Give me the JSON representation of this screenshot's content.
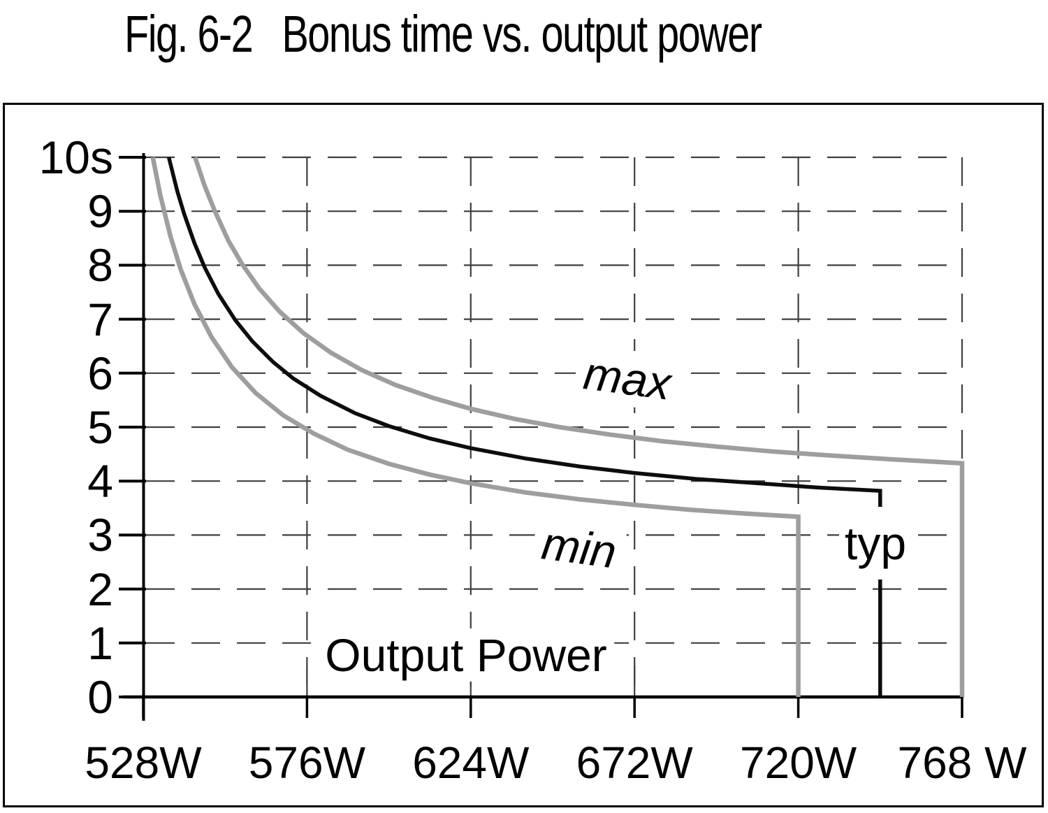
{
  "title": {
    "figure_label": "Fig. 6-2",
    "text": "Bonus time vs. output power"
  },
  "colors": {
    "background": "#ffffff",
    "axis": "#000000",
    "grid": "#3f3f3f",
    "curve_gray": "#9e9e9e",
    "curve_black": "#0d0d0d"
  },
  "chart_data": {
    "type": "line",
    "title": "Bonus time vs. output power",
    "xlabel": "Output Power",
    "x_unit": "W",
    "y_unit": "s",
    "xlim": [
      528,
      768
    ],
    "ylim": [
      0,
      10
    ],
    "grid": "dashed",
    "x_ticks": [
      {
        "value": 528,
        "label": "528W"
      },
      {
        "value": 576,
        "label": "576W"
      },
      {
        "value": 624,
        "label": "624W"
      },
      {
        "value": 672,
        "label": "672W"
      },
      {
        "value": 720,
        "label": "720W"
      },
      {
        "value": 768,
        "label": "768 W"
      }
    ],
    "y_ticks": [
      {
        "value": 10,
        "label": "10s"
      },
      {
        "value": 9,
        "label": "9"
      },
      {
        "value": 8,
        "label": "8"
      },
      {
        "value": 7,
        "label": "7"
      },
      {
        "value": 6,
        "label": "6"
      },
      {
        "value": 5,
        "label": "5"
      },
      {
        "value": 4,
        "label": "4"
      },
      {
        "value": 3,
        "label": "3"
      },
      {
        "value": 2,
        "label": "2"
      },
      {
        "value": 1,
        "label": "1"
      },
      {
        "value": 0,
        "label": "0"
      }
    ],
    "series": [
      {
        "name": "max",
        "label": "max",
        "color": "#9e9e9e",
        "drops_to_zero": true,
        "points": [
          [
            543.2,
            10.0
          ],
          [
            546,
            9.47
          ],
          [
            549,
            9.0
          ],
          [
            553,
            8.45
          ],
          [
            557,
            8.02
          ],
          [
            562,
            7.57
          ],
          [
            568,
            7.14
          ],
          [
            575,
            6.74
          ],
          [
            583,
            6.38
          ],
          [
            592,
            6.06
          ],
          [
            602,
            5.78
          ],
          [
            613,
            5.54
          ],
          [
            624,
            5.34
          ],
          [
            637,
            5.15
          ],
          [
            650,
            5.0
          ],
          [
            665,
            4.86
          ],
          [
            680,
            4.74
          ],
          [
            696,
            4.64
          ],
          [
            712,
            4.55
          ],
          [
            728,
            4.48
          ],
          [
            748,
            4.4
          ],
          [
            768,
            4.33
          ]
        ]
      },
      {
        "name": "typ",
        "label": "typ",
        "color": "#0d0d0d",
        "drops_to_zero": true,
        "points": [
          [
            535.5,
            10.0
          ],
          [
            538,
            9.37
          ],
          [
            540,
            8.95
          ],
          [
            543,
            8.41
          ],
          [
            546,
            7.96
          ],
          [
            550,
            7.47
          ],
          [
            555,
            6.98
          ],
          [
            560,
            6.59
          ],
          [
            566,
            6.21
          ],
          [
            572,
            5.9
          ],
          [
            580,
            5.58
          ],
          [
            590,
            5.26
          ],
          [
            600,
            5.02
          ],
          [
            612,
            4.79
          ],
          [
            624,
            4.61
          ],
          [
            640,
            4.42
          ],
          [
            656,
            4.27
          ],
          [
            672,
            4.15
          ],
          [
            690,
            4.04
          ],
          [
            708,
            3.96
          ],
          [
            726,
            3.88
          ],
          [
            744,
            3.82
          ]
        ]
      },
      {
        "name": "min",
        "label": "min",
        "color": "#9e9e9e",
        "drops_to_zero": true,
        "points": [
          [
            530.8,
            10.0
          ],
          [
            533,
            9.3
          ],
          [
            536,
            8.53
          ],
          [
            539,
            7.92
          ],
          [
            543,
            7.28
          ],
          [
            548,
            6.67
          ],
          [
            554,
            6.11
          ],
          [
            561,
            5.63
          ],
          [
            569,
            5.22
          ],
          [
            578,
            4.88
          ],
          [
            588,
            4.58
          ],
          [
            600,
            4.32
          ],
          [
            612,
            4.12
          ],
          [
            624,
            3.96
          ],
          [
            640,
            3.79
          ],
          [
            656,
            3.66
          ],
          [
            672,
            3.56
          ],
          [
            688,
            3.47
          ],
          [
            704,
            3.4
          ],
          [
            720,
            3.34
          ]
        ]
      }
    ]
  }
}
